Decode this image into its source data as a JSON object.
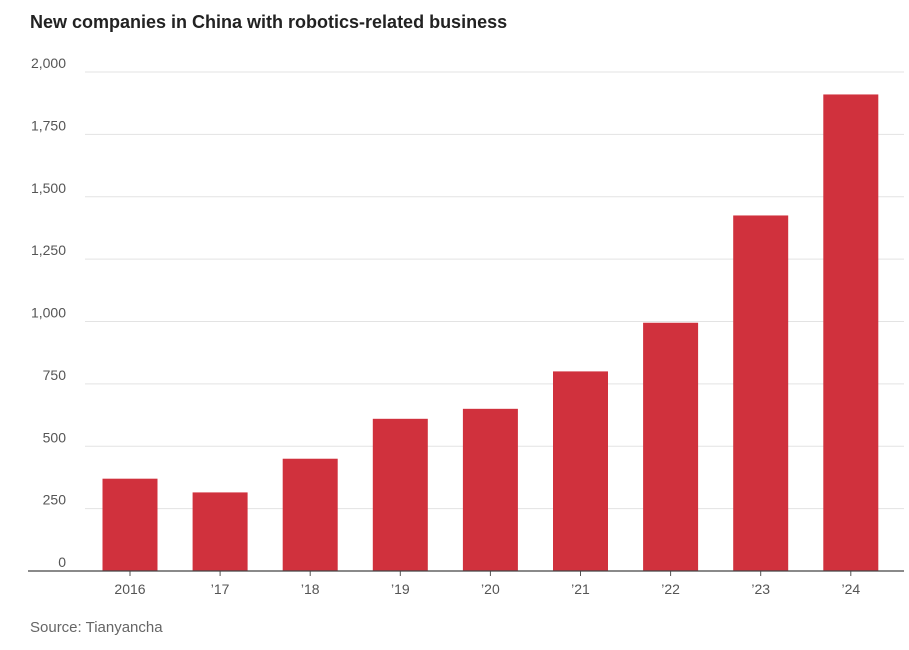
{
  "chart_data": {
    "type": "bar",
    "title": "New companies in China with robotics-related business",
    "categories": [
      "2016",
      "’17",
      "’18",
      "’19",
      "’20",
      "’21",
      "’22",
      "’23",
      "’24"
    ],
    "values": [
      370,
      315,
      450,
      610,
      650,
      800,
      995,
      1425,
      1910
    ],
    "ylim": [
      0,
      2000
    ],
    "yticks": [
      0,
      250,
      500,
      750,
      1000,
      1250,
      1500,
      1750,
      2000
    ],
    "ytick_labels": [
      "0",
      "250",
      "500",
      "750",
      "1,000",
      "1,250",
      "1,500",
      "1,750",
      "2,000"
    ],
    "grid": true,
    "bar_color": "#d0313d",
    "source": "Source: Tianyancha"
  }
}
